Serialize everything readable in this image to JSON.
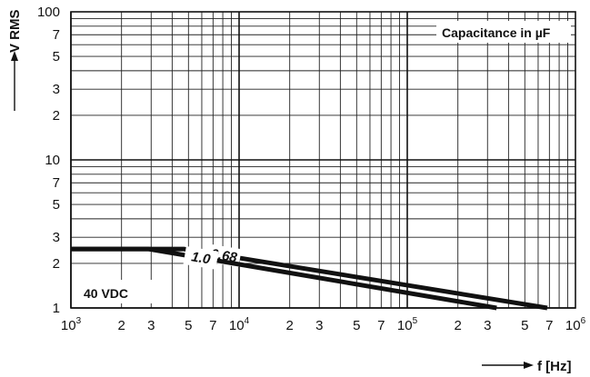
{
  "chart_data": {
    "type": "line",
    "x_scale": "log",
    "y_scale": "log",
    "xlim": [
      1000,
      1000000
    ],
    "ylim": [
      1,
      100
    ],
    "xlabel": "f [Hz]",
    "ylabel": "V RMS",
    "grid": true,
    "x_ticks": [
      {
        "v": 1000,
        "m": "10",
        "e": "3"
      },
      {
        "v": 2000,
        "m": "2",
        "e": ""
      },
      {
        "v": 3000,
        "m": "3",
        "e": ""
      },
      {
        "v": 5000,
        "m": "5",
        "e": ""
      },
      {
        "v": 7000,
        "m": "7",
        "e": ""
      },
      {
        "v": 10000,
        "m": "10",
        "e": "4"
      },
      {
        "v": 20000,
        "m": "2",
        "e": ""
      },
      {
        "v": 30000,
        "m": "3",
        "e": ""
      },
      {
        "v": 50000,
        "m": "5",
        "e": ""
      },
      {
        "v": 70000,
        "m": "7",
        "e": ""
      },
      {
        "v": 100000,
        "m": "10",
        "e": "5"
      },
      {
        "v": 200000,
        "m": "2",
        "e": ""
      },
      {
        "v": 300000,
        "m": "3",
        "e": ""
      },
      {
        "v": 500000,
        "m": "5",
        "e": ""
      },
      {
        "v": 700000,
        "m": "7",
        "e": ""
      },
      {
        "v": 1000000,
        "m": "10",
        "e": "6"
      }
    ],
    "y_ticks": [
      {
        "v": 1,
        "t": "1"
      },
      {
        "v": 2,
        "t": "2"
      },
      {
        "v": 3,
        "t": "3"
      },
      {
        "v": 5,
        "t": "5"
      },
      {
        "v": 7,
        "t": "7"
      },
      {
        "v": 10,
        "t": "10"
      },
      {
        "v": 20,
        "t": "2"
      },
      {
        "v": 30,
        "t": "3"
      },
      {
        "v": 50,
        "t": "5"
      },
      {
        "v": 70,
        "t": "7"
      },
      {
        "v": 100,
        "t": "100"
      }
    ],
    "series": [
      {
        "name": "0.68",
        "x": [
          1000,
          4700,
          680000
        ],
        "y": [
          2.5,
          2.5,
          1.0
        ]
      },
      {
        "name": "1.0",
        "x": [
          1000,
          2900,
          340000
        ],
        "y": [
          2.5,
          2.5,
          1.0
        ]
      }
    ],
    "legend_title": "Capacitance in µF",
    "annotation": "40 VDC"
  }
}
